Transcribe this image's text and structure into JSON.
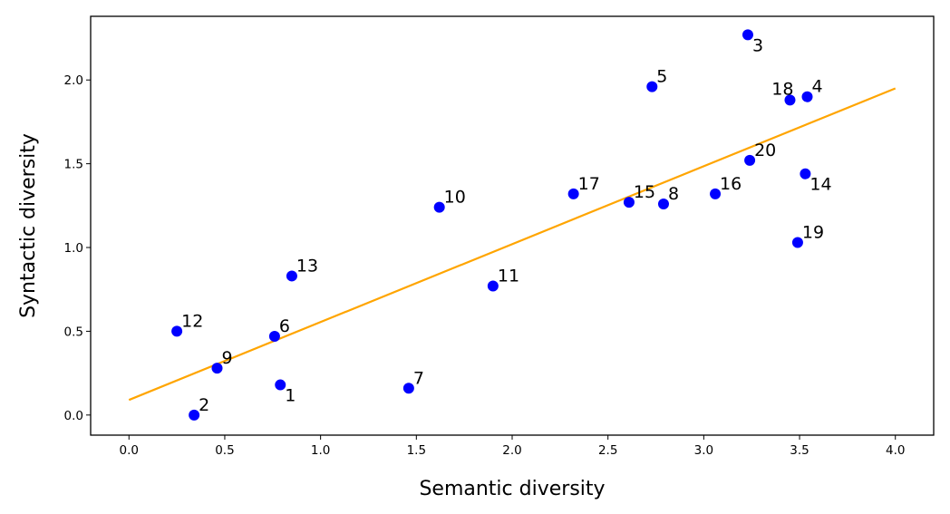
{
  "chart_data": {
    "type": "scatter",
    "xlabel": "Semantic diversity",
    "ylabel": "Syntactic diversity",
    "xlim": [
      -0.2,
      4.2
    ],
    "ylim": [
      -0.12,
      2.38
    ],
    "x_ticks": [
      0.0,
      0.5,
      1.0,
      1.5,
      2.0,
      2.5,
      3.0,
      3.5,
      4.0
    ],
    "x_tick_labels": [
      "0.0",
      "0.5",
      "1.0",
      "1.5",
      "2.0",
      "2.5",
      "3.0",
      "3.5",
      "4.0"
    ],
    "y_ticks": [
      0.0,
      0.5,
      1.0,
      1.5,
      2.0
    ],
    "y_tick_labels": [
      "0.0",
      "0.5",
      "1.0",
      "1.5",
      "2.0"
    ],
    "grid": false,
    "point_color": "#0000ff",
    "line_color": "#ffa500",
    "points": [
      {
        "label": "1",
        "x": 0.79,
        "y": 0.18,
        "label_pos": "below-right"
      },
      {
        "label": "2",
        "x": 0.34,
        "y": 0.0,
        "label_pos": "above-right"
      },
      {
        "label": "3",
        "x": 3.23,
        "y": 2.27,
        "label_pos": "below-right"
      },
      {
        "label": "4",
        "x": 3.54,
        "y": 1.9,
        "label_pos": "above-right"
      },
      {
        "label": "5",
        "x": 2.73,
        "y": 1.96,
        "label_pos": "above-right"
      },
      {
        "label": "6",
        "x": 0.76,
        "y": 0.47,
        "label_pos": "above-right"
      },
      {
        "label": "7",
        "x": 1.46,
        "y": 0.16,
        "label_pos": "above-right"
      },
      {
        "label": "8",
        "x": 2.79,
        "y": 1.26,
        "label_pos": "above-right"
      },
      {
        "label": "9",
        "x": 0.46,
        "y": 0.28,
        "label_pos": "above-right"
      },
      {
        "label": "10",
        "x": 1.62,
        "y": 1.24,
        "label_pos": "above-right"
      },
      {
        "label": "11",
        "x": 1.9,
        "y": 0.77,
        "label_pos": "above-right"
      },
      {
        "label": "12",
        "x": 0.25,
        "y": 0.5,
        "label_pos": "above-right"
      },
      {
        "label": "13",
        "x": 0.85,
        "y": 0.83,
        "label_pos": "above-right"
      },
      {
        "label": "14",
        "x": 3.53,
        "y": 1.44,
        "label_pos": "below-right"
      },
      {
        "label": "15",
        "x": 2.61,
        "y": 1.27,
        "label_pos": "above-right"
      },
      {
        "label": "16",
        "x": 3.06,
        "y": 1.32,
        "label_pos": "above-right"
      },
      {
        "label": "17",
        "x": 2.32,
        "y": 1.32,
        "label_pos": "above-right"
      },
      {
        "label": "18",
        "x": 3.45,
        "y": 1.88,
        "label_pos": "above-left"
      },
      {
        "label": "19",
        "x": 3.49,
        "y": 1.03,
        "label_pos": "above-right"
      },
      {
        "label": "20",
        "x": 3.24,
        "y": 1.52,
        "label_pos": "above-right"
      }
    ],
    "fit_line": {
      "x": [
        0.0,
        4.0
      ],
      "y": [
        0.09,
        1.95
      ]
    }
  }
}
